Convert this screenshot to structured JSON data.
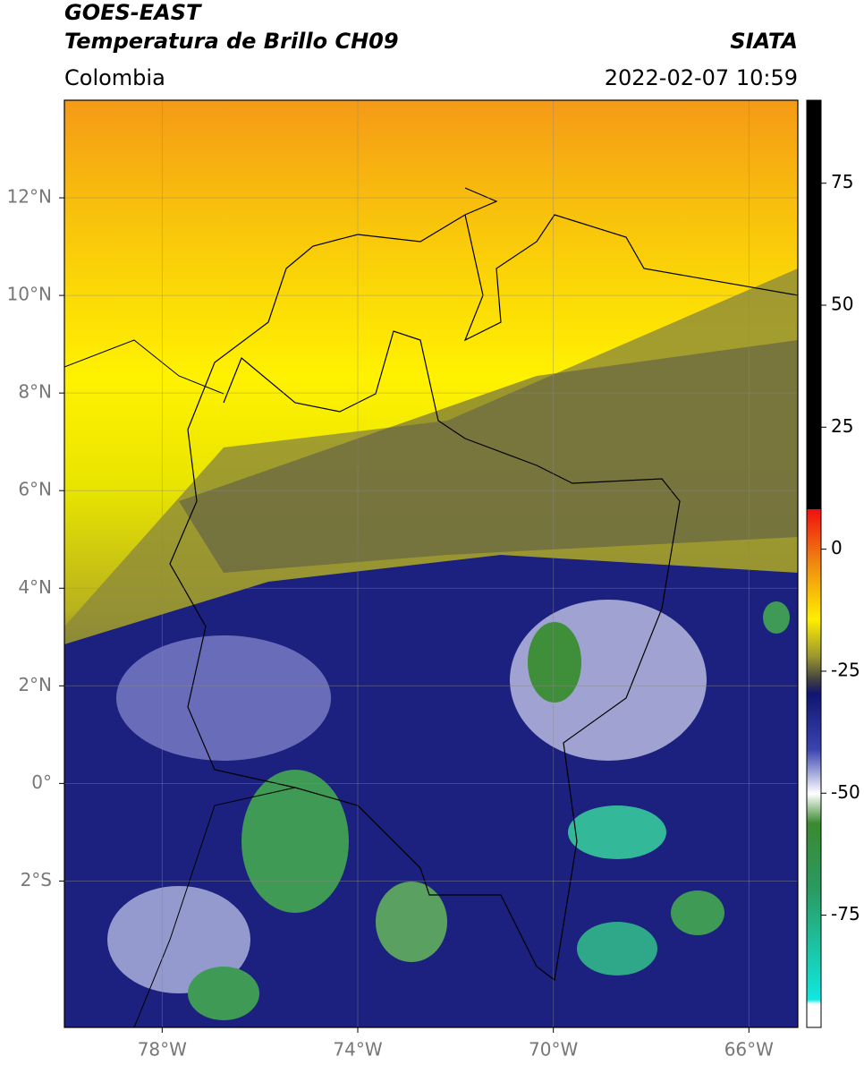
{
  "header": {
    "title": "GOES-EAST",
    "subtitle": "Temperatura de Brillo CH09",
    "source": "SIATA",
    "region": "Colombia",
    "datetime": "2022-02-07 10:59"
  },
  "map": {
    "lon_range": [
      -80,
      -65
    ],
    "lat_range": [
      -5,
      14
    ],
    "lon_ticks": [
      {
        "value": -78,
        "label": "78°W"
      },
      {
        "value": -74,
        "label": "74°W"
      },
      {
        "value": -70,
        "label": "70°W"
      },
      {
        "value": -66,
        "label": "66°W"
      }
    ],
    "lat_ticks": [
      {
        "value": 12,
        "label": "12°N"
      },
      {
        "value": 10,
        "label": "10°N"
      },
      {
        "value": 8,
        "label": "8°N"
      },
      {
        "value": 6,
        "label": "6°N"
      },
      {
        "value": 4,
        "label": "4°N"
      },
      {
        "value": 2,
        "label": "2°N"
      },
      {
        "value": 0,
        "label": "0°"
      },
      {
        "value": -2,
        "label": "2°S"
      }
    ],
    "colorbar": {
      "range": [
        -98,
        92
      ],
      "ticks": [
        75,
        50,
        25,
        0,
        -25,
        -50,
        -75
      ]
    }
  }
}
